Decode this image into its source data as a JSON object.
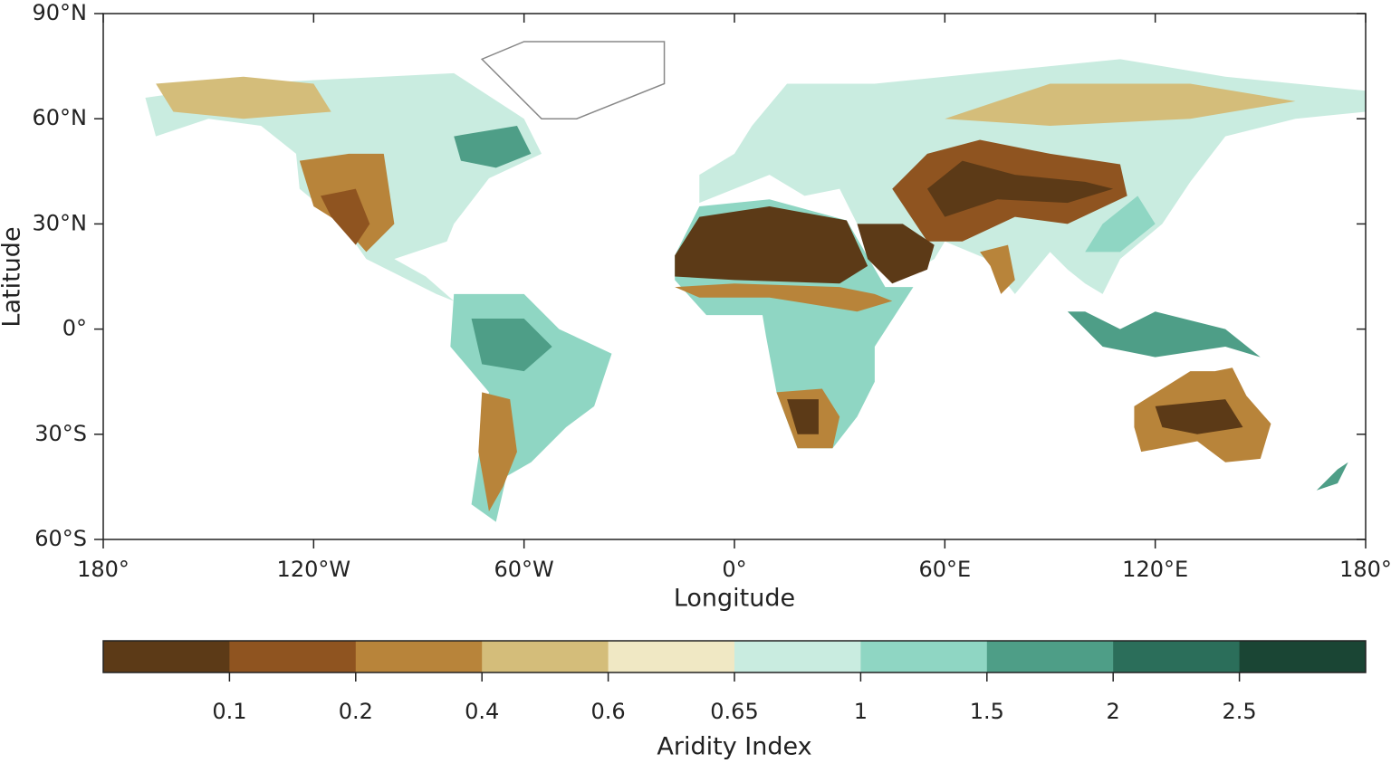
{
  "map": {
    "xlabel": "Longitude",
    "ylabel": "Latitude",
    "xlim": [
      -180,
      180
    ],
    "ylim": [
      -60,
      90
    ],
    "xticks": [
      {
        "value": -180,
        "label": "180°"
      },
      {
        "value": -120,
        "label": "120°W"
      },
      {
        "value": -60,
        "label": "60°W"
      },
      {
        "value": 0,
        "label": "0°"
      },
      {
        "value": 60,
        "label": "60°E"
      },
      {
        "value": 120,
        "label": "120°E"
      },
      {
        "value": 180,
        "label": "180°"
      }
    ],
    "yticks": [
      {
        "value": 90,
        "label": "90°N"
      },
      {
        "value": 60,
        "label": "60°N"
      },
      {
        "value": 30,
        "label": "30°N"
      },
      {
        "value": 0,
        "label": "0°"
      },
      {
        "value": -30,
        "label": "30°S"
      },
      {
        "value": -60,
        "label": "60°S"
      }
    ],
    "colorbar": {
      "label": "Aridity Index",
      "bounds": [
        0.1,
        0.2,
        0.4,
        0.6,
        0.65,
        1,
        1.5,
        2,
        2.5
      ],
      "colors": [
        "#5c3a17",
        "#8f5420",
        "#b8843a",
        "#d4bd7a",
        "#f0e8c4",
        "#c9ece0",
        "#8fd6c3",
        "#4e9e87",
        "#2b6e5a",
        "#1a4534"
      ]
    }
  }
}
